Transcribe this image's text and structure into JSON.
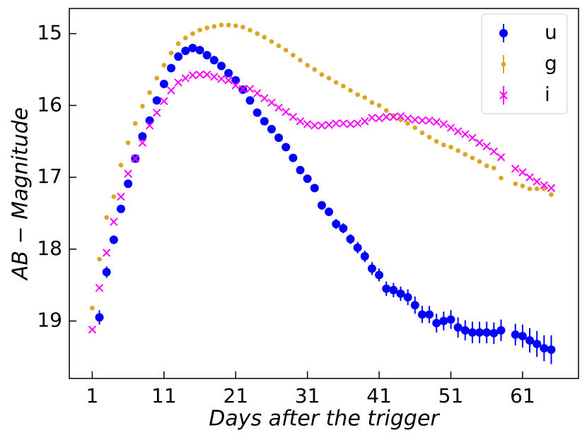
{
  "chart_data": {
    "type": "scatter",
    "xlabel": "Days after the trigger",
    "ylabel": "AB − Magnitude",
    "xlim": [
      -2.2,
      68.8
    ],
    "ylim": [
      19.8,
      14.65
    ],
    "y_inverted": true,
    "xticks": [
      1,
      11,
      21,
      31,
      41,
      51,
      61
    ],
    "yticks": [
      15,
      16,
      17,
      18,
      19
    ],
    "legend": "upper right",
    "series": [
      {
        "name": "u",
        "color": "#0000ff",
        "marker": "circle",
        "x": [
          2,
          3,
          4,
          5,
          6,
          7,
          8,
          9,
          10,
          11,
          12,
          13,
          14,
          15,
          16,
          17,
          18,
          19,
          20,
          21,
          22,
          23,
          24,
          25,
          26,
          27,
          28,
          29,
          30,
          31,
          32,
          33,
          34,
          35,
          36,
          37,
          38,
          39,
          40,
          41,
          42,
          43,
          44,
          45,
          46,
          47,
          48,
          49,
          50,
          51,
          52,
          53,
          54,
          55,
          56,
          57,
          58,
          60,
          61,
          62,
          63,
          64,
          65
        ],
        "values": [
          18.95,
          18.32,
          17.87,
          17.44,
          17.09,
          16.74,
          16.43,
          16.21,
          15.93,
          15.7,
          15.48,
          15.32,
          15.24,
          15.2,
          15.23,
          15.3,
          15.37,
          15.45,
          15.55,
          15.65,
          15.78,
          15.93,
          16.1,
          16.22,
          16.33,
          16.45,
          16.58,
          16.73,
          16.9,
          17.02,
          17.15,
          17.39,
          17.48,
          17.65,
          17.71,
          17.86,
          17.98,
          18.1,
          18.27,
          18.36,
          18.55,
          18.57,
          18.62,
          18.67,
          18.78,
          18.91,
          18.91,
          19.03,
          19.0,
          18.98,
          19.09,
          19.13,
          19.16,
          19.16,
          19.16,
          19.17,
          19.13,
          19.19,
          19.21,
          19.27,
          19.32,
          19.38,
          19.4
        ],
        "errors": [
          0.1,
          0.08,
          0.06,
          0.05,
          0.05,
          0.04,
          0.04,
          0.04,
          0.04,
          0.04,
          0.04,
          0.04,
          0.04,
          0.04,
          0.04,
          0.04,
          0.04,
          0.04,
          0.04,
          0.04,
          0.04,
          0.04,
          0.04,
          0.04,
          0.04,
          0.04,
          0.04,
          0.04,
          0.05,
          0.05,
          0.05,
          0.06,
          0.06,
          0.07,
          0.07,
          0.07,
          0.08,
          0.08,
          0.09,
          0.09,
          0.1,
          0.1,
          0.1,
          0.11,
          0.12,
          0.12,
          0.12,
          0.13,
          0.13,
          0.13,
          0.14,
          0.14,
          0.15,
          0.15,
          0.15,
          0.15,
          0.15,
          0.15,
          0.16,
          0.17,
          0.18,
          0.18,
          0.2
        ]
      },
      {
        "name": "g",
        "color": "#daa520",
        "marker": "dot",
        "x": [
          1,
          2,
          3,
          4,
          5,
          6,
          7,
          8,
          9,
          10,
          11,
          12,
          13,
          14,
          15,
          16,
          17,
          18,
          19,
          20,
          21,
          22,
          23,
          24,
          25,
          26,
          27,
          28,
          29,
          30,
          31,
          32,
          33,
          34,
          35,
          36,
          37,
          38,
          39,
          40,
          41,
          42,
          43,
          44,
          45,
          46,
          47,
          48,
          49,
          50,
          51,
          52,
          53,
          54,
          55,
          56,
          57,
          58,
          60,
          61,
          62,
          63,
          64,
          65
        ],
        "values": [
          18.82,
          18.14,
          17.56,
          17.27,
          16.83,
          16.52,
          16.25,
          16.01,
          15.82,
          15.62,
          15.44,
          15.27,
          15.14,
          15.06,
          15.0,
          14.95,
          14.92,
          14.9,
          14.88,
          14.88,
          14.89,
          14.91,
          14.95,
          15.0,
          15.05,
          15.11,
          15.17,
          15.23,
          15.3,
          15.37,
          15.44,
          15.5,
          15.57,
          15.62,
          15.68,
          15.73,
          15.79,
          15.85,
          15.89,
          15.96,
          16.0,
          16.07,
          16.14,
          16.2,
          16.25,
          16.31,
          16.38,
          16.44,
          16.5,
          16.55,
          16.58,
          16.63,
          16.68,
          16.73,
          16.78,
          16.84,
          16.87,
          17.01,
          17.09,
          17.12,
          17.16,
          17.16,
          17.16,
          17.24
        ]
      },
      {
        "name": "i",
        "color": "#ff00ff",
        "marker": "x",
        "x": [
          1,
          2,
          3,
          4,
          5,
          6,
          7,
          8,
          9,
          10,
          11,
          12,
          13,
          14,
          15,
          16,
          17,
          18,
          19,
          20,
          21,
          22,
          23,
          24,
          25,
          26,
          27,
          28,
          29,
          30,
          31,
          32,
          33,
          34,
          35,
          36,
          37,
          38,
          39,
          40,
          41,
          42,
          43,
          44,
          45,
          46,
          47,
          48,
          49,
          50,
          51,
          52,
          53,
          54,
          55,
          56,
          57,
          58,
          60,
          61,
          62,
          63,
          64,
          65
        ],
        "values": [
          19.12,
          18.54,
          18.05,
          17.62,
          17.27,
          16.95,
          16.74,
          16.52,
          16.28,
          16.1,
          15.94,
          15.79,
          15.68,
          15.62,
          15.58,
          15.57,
          15.57,
          15.6,
          15.63,
          15.65,
          15.72,
          15.77,
          15.77,
          15.83,
          15.9,
          15.96,
          16.03,
          16.09,
          16.16,
          16.22,
          16.26,
          16.28,
          16.28,
          16.27,
          16.25,
          16.25,
          16.26,
          16.25,
          16.22,
          16.17,
          16.18,
          16.16,
          16.16,
          16.15,
          16.18,
          16.2,
          16.21,
          16.21,
          16.23,
          16.26,
          16.31,
          16.36,
          16.4,
          16.45,
          16.52,
          16.57,
          16.64,
          16.72,
          16.88,
          16.93,
          17.0,
          17.06,
          17.11,
          17.15
        ]
      }
    ]
  }
}
